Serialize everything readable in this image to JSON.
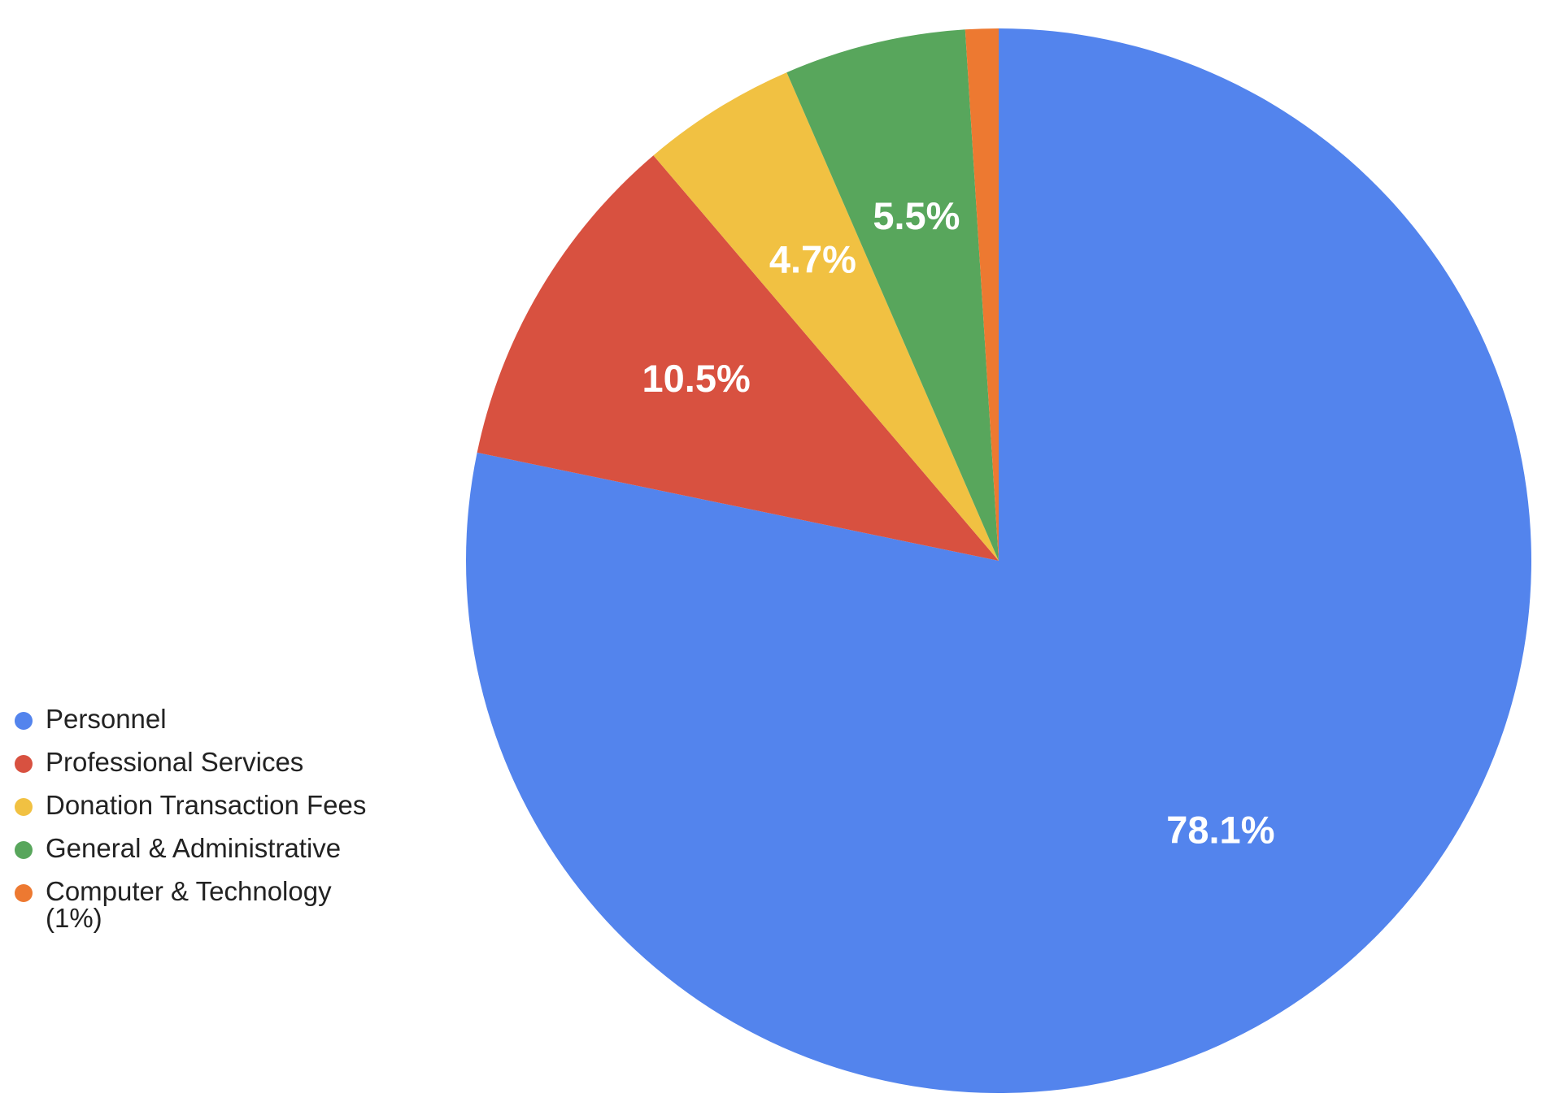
{
  "chart_data": {
    "type": "pie",
    "start_angle": "12 o'clock",
    "direction": "clockwise",
    "legend_position": "left",
    "slices": [
      {
        "name": "Personnel",
        "value": 78.1,
        "label": "78.1%",
        "color": "#5384ED"
      },
      {
        "name": "Professional Services",
        "value": 10.5,
        "label": "10.5%",
        "color": "#D85140"
      },
      {
        "name": "Donation Transaction Fees",
        "value": 4.7,
        "label": "4.7%",
        "color": "#F1C142"
      },
      {
        "name": "General & Administrative",
        "value": 5.5,
        "label": "5.5%",
        "color": "#58A65C"
      },
      {
        "name": "Computer & Technology (1%)",
        "value": 1.0,
        "label": "",
        "color": "#ED7931"
      }
    ]
  }
}
